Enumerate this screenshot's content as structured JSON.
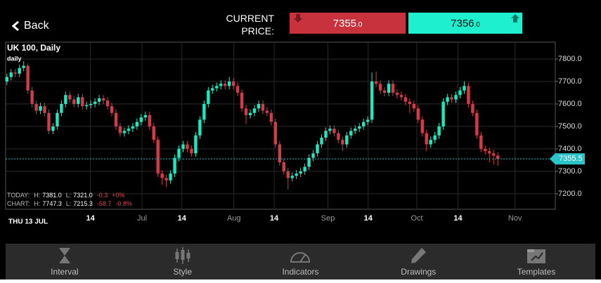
{
  "header": {
    "back": "Back",
    "price_caption_1": "CURRENT",
    "price_caption_2": "PRICE:",
    "bid": {
      "main": "7355",
      "decimals": ".0"
    },
    "ask": {
      "main": "7356",
      "decimals": ".0"
    }
  },
  "chart_data": {
    "type": "candlestick",
    "title": "UK 100, Daily",
    "subtitle": "daily",
    "up_color": "#1de9c0",
    "down_color": "#d23c48",
    "open": [
      7700,
      7720,
      7740,
      7735,
      7760,
      7770,
      7660,
      7600,
      7570,
      7590,
      7560,
      7480,
      7500,
      7560,
      7600,
      7640,
      7620,
      7600,
      7630,
      7590,
      7595,
      7600,
      7610,
      7625,
      7615,
      7590,
      7560,
      7500,
      7470,
      7480,
      7490,
      7500,
      7520,
      7540,
      7550,
      7500,
      7440,
      7290,
      7270,
      7260,
      7290,
      7360,
      7400,
      7420,
      7400,
      7380,
      7460,
      7530,
      7600,
      7660,
      7670,
      7680,
      7690,
      7680,
      7700,
      7680,
      7650,
      7580,
      7550,
      7560,
      7580,
      7600,
      7570,
      7560,
      7520,
      7420,
      7340,
      7300,
      7270,
      7280,
      7290,
      7300,
      7320,
      7360,
      7380,
      7420,
      7450,
      7480,
      7490,
      7470,
      7440,
      7420,
      7460,
      7480,
      7490,
      7500,
      7520,
      7530,
      7700,
      7690,
      7660,
      7650,
      7690,
      7650,
      7640,
      7630,
      7610,
      7600,
      7580,
      7530,
      7470,
      7420,
      7440,
      7460,
      7500,
      7610,
      7630,
      7620,
      7640,
      7660,
      7680,
      7600,
      7560,
      7460,
      7400,
      7390,
      7380,
      7370
    ],
    "high": [
      7735,
      7755,
      7755,
      7775,
      7790,
      7780,
      7675,
      7615,
      7605,
      7605,
      7575,
      7515,
      7575,
      7615,
      7655,
      7655,
      7635,
      7645,
      7645,
      7610,
      7615,
      7625,
      7640,
      7640,
      7630,
      7605,
      7575,
      7515,
      7495,
      7505,
      7515,
      7535,
      7555,
      7565,
      7565,
      7515,
      7455,
      7305,
      7285,
      7305,
      7375,
      7415,
      7435,
      7435,
      7415,
      7475,
      7545,
      7615,
      7675,
      7685,
      7695,
      7705,
      7705,
      7720,
      7715,
      7695,
      7665,
      7595,
      7575,
      7595,
      7615,
      7615,
      7585,
      7575,
      7535,
      7435,
      7355,
      7315,
      7295,
      7305,
      7315,
      7335,
      7375,
      7395,
      7435,
      7465,
      7495,
      7505,
      7505,
      7485,
      7455,
      7475,
      7495,
      7505,
      7515,
      7535,
      7545,
      7740,
      7745,
      7705,
      7675,
      7705,
      7705,
      7665,
      7655,
      7645,
      7625,
      7615,
      7595,
      7545,
      7485,
      7455,
      7475,
      7515,
      7625,
      7645,
      7645,
      7655,
      7675,
      7700,
      7695,
      7615,
      7575,
      7475,
      7415,
      7405,
      7395,
      7385
    ],
    "low": [
      7685,
      7705,
      7720,
      7720,
      7745,
      7645,
      7585,
      7555,
      7555,
      7545,
      7465,
      7465,
      7485,
      7545,
      7585,
      7605,
      7585,
      7585,
      7575,
      7575,
      7580,
      7585,
      7595,
      7600,
      7575,
      7545,
      7485,
      7455,
      7455,
      7465,
      7475,
      7485,
      7505,
      7525,
      7485,
      7425,
      7275,
      7240,
      7230,
      7245,
      7275,
      7345,
      7385,
      7385,
      7365,
      7365,
      7445,
      7515,
      7585,
      7645,
      7655,
      7665,
      7665,
      7665,
      7665,
      7635,
      7565,
      7510,
      7535,
      7545,
      7565,
      7555,
      7545,
      7505,
      7405,
      7325,
      7285,
      7220,
      7255,
      7265,
      7275,
      7285,
      7305,
      7345,
      7365,
      7405,
      7435,
      7465,
      7455,
      7425,
      7390,
      7405,
      7445,
      7465,
      7475,
      7485,
      7505,
      7515,
      7675,
      7645,
      7635,
      7635,
      7635,
      7625,
      7615,
      7595,
      7560,
      7565,
      7515,
      7455,
      7390,
      7405,
      7425,
      7445,
      7485,
      7595,
      7605,
      7605,
      7625,
      7645,
      7585,
      7545,
      7445,
      7385,
      7375,
      7340,
      7330,
      7325
    ],
    "close": [
      7720,
      7740,
      7735,
      7760,
      7770,
      7660,
      7600,
      7570,
      7590,
      7560,
      7480,
      7500,
      7560,
      7600,
      7640,
      7620,
      7600,
      7630,
      7590,
      7595,
      7600,
      7610,
      7625,
      7615,
      7590,
      7560,
      7500,
      7470,
      7480,
      7490,
      7500,
      7520,
      7540,
      7550,
      7500,
      7440,
      7290,
      7270,
      7260,
      7290,
      7360,
      7400,
      7420,
      7400,
      7380,
      7460,
      7530,
      7600,
      7660,
      7670,
      7680,
      7690,
      7680,
      7700,
      7680,
      7650,
      7580,
      7550,
      7560,
      7580,
      7600,
      7570,
      7560,
      7520,
      7420,
      7340,
      7300,
      7270,
      7280,
      7290,
      7300,
      7320,
      7360,
      7380,
      7420,
      7450,
      7480,
      7490,
      7470,
      7440,
      7420,
      7460,
      7480,
      7490,
      7500,
      7520,
      7530,
      7700,
      7690,
      7660,
      7650,
      7690,
      7650,
      7640,
      7630,
      7610,
      7600,
      7580,
      7530,
      7470,
      7420,
      7440,
      7460,
      7500,
      7610,
      7630,
      7620,
      7640,
      7660,
      7680,
      7600,
      7560,
      7460,
      7400,
      7390,
      7380,
      7370,
      7355.5
    ],
    "xlim": [
      -0.3,
      130.7
    ],
    "xticks": [
      {
        "value": 19.9,
        "label": "14"
      },
      {
        "value": 32.2,
        "label": "Jul"
      },
      {
        "value": 41.7,
        "label": "14"
      },
      {
        "value": 54.1,
        "label": "Aug"
      },
      {
        "value": 63.7,
        "label": "14"
      },
      {
        "value": 76.5,
        "label": "Sep"
      },
      {
        "value": 86.1,
        "label": "14"
      },
      {
        "value": 97.7,
        "label": "Oct"
      },
      {
        "value": 107.5,
        "label": "14"
      },
      {
        "value": 121.1,
        "label": "Nov"
      }
    ],
    "ylim": [
      7131,
      7869
    ],
    "yticks": [
      {
        "value": 7200,
        "label": "7200.0"
      },
      {
        "value": 7300,
        "label": "7300.0"
      },
      {
        "value": 7400,
        "label": "7400.0"
      },
      {
        "value": 7500,
        "label": "7500.0"
      },
      {
        "value": 7600,
        "label": "7600.0"
      },
      {
        "value": 7700,
        "label": "7700.0"
      },
      {
        "value": 7800,
        "label": "7800.0"
      }
    ],
    "grid": true,
    "current_price": 7355.5,
    "price_line_color": "#2bc4c8",
    "cursor_date": "THU 13 JUL",
    "stats": [
      {
        "label": "TODAY:",
        "h_label": "H:",
        "h": "7381.0",
        "l_label": "L:",
        "l": "7321.0",
        "change": "-0.3",
        "pct": "+0%"
      },
      {
        "label": "CHART:",
        "h_label": "H:",
        "h": "7747.3",
        "l_label": "L:",
        "l": "7215.3",
        "change": "-58.7",
        "pct": "-0.8%"
      }
    ]
  },
  "toolbar": [
    "Interval",
    "Style",
    "Indicators",
    "Drawings",
    "Templates"
  ]
}
